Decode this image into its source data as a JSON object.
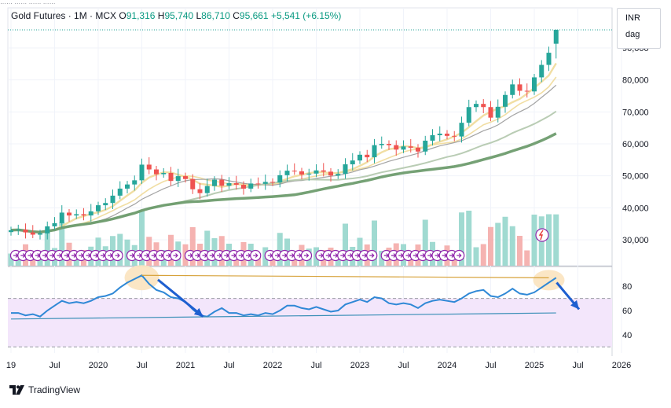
{
  "header": {
    "symbol": "Gold Futures · 1M · MCX",
    "o_label": "O",
    "o_value": "91,316",
    "h_label": "H",
    "h_value": "95,740",
    "l_label": "L",
    "l_value": "86,710",
    "c_label": "C",
    "c_value": "95,661",
    "change": "+5,541 (+6.15%)",
    "cut_text": "…… …… …… ……"
  },
  "scale_box": {
    "currency": "INR",
    "unit": "dag"
  },
  "branding": {
    "name": "TradingView"
  },
  "colors": {
    "up": "#26a69a",
    "down": "#ef5350",
    "rsi_line": "#2f88d6",
    "rsi_band": "#f3e6fb",
    "trend_orange": "#d7a23a",
    "ma_light": "#f0dc9e",
    "ma_mid": "#b5c9b0",
    "ma_dark": "#6e9c6e",
    "ma_gray": "#9e9e9e"
  },
  "chart_data": [
    {
      "type": "candlestick",
      "timeframe": "1M",
      "ylim": [
        21000,
        97000
      ],
      "price_ticks": [
        "30,000",
        "40,000",
        "50,000",
        "60,000",
        "70,000",
        "80,000",
        "90,000"
      ],
      "x_ticks": [
        "19",
        "Jul",
        "2020",
        "Jul",
        "2021",
        "Jul",
        "2022",
        "Jul",
        "2023",
        "Jul",
        "2024",
        "Jul",
        "2025",
        "Jul",
        "2026"
      ],
      "candles": [
        {
          "t": "2019-01",
          "o": 32400,
          "c": 33000
        },
        {
          "t": "2019-02",
          "o": 33000,
          "c": 33200
        },
        {
          "t": "2019-03",
          "o": 33200,
          "c": 32300
        },
        {
          "t": "2019-04",
          "o": 32300,
          "c": 31600
        },
        {
          "t": "2019-05",
          "o": 31600,
          "c": 32000
        },
        {
          "t": "2019-06",
          "o": 32000,
          "c": 34200
        },
        {
          "t": "2019-07",
          "o": 34200,
          "c": 35200
        },
        {
          "t": "2019-08",
          "o": 35200,
          "c": 38500
        },
        {
          "t": "2019-09",
          "o": 38500,
          "c": 37600
        },
        {
          "t": "2019-10",
          "o": 37600,
          "c": 38000
        },
        {
          "t": "2019-11",
          "o": 38000,
          "c": 37600
        },
        {
          "t": "2019-12",
          "o": 37600,
          "c": 38900
        },
        {
          "t": "2020-01",
          "o": 38900,
          "c": 40800
        },
        {
          "t": "2020-02",
          "o": 40800,
          "c": 41500
        },
        {
          "t": "2020-03",
          "o": 41500,
          "c": 43800
        },
        {
          "t": "2020-04",
          "o": 43800,
          "c": 46000
        },
        {
          "t": "2020-05",
          "o": 46000,
          "c": 47300
        },
        {
          "t": "2020-06",
          "o": 47300,
          "c": 48600
        },
        {
          "t": "2020-07",
          "o": 48600,
          "c": 53500
        },
        {
          "t": "2020-08",
          "o": 53500,
          "c": 52000
        },
        {
          "t": "2020-09",
          "o": 52000,
          "c": 50500
        },
        {
          "t": "2020-10",
          "o": 50500,
          "c": 50900
        },
        {
          "t": "2020-11",
          "o": 50900,
          "c": 48400
        },
        {
          "t": "2020-12",
          "o": 48400,
          "c": 49900
        },
        {
          "t": "2021-01",
          "o": 49900,
          "c": 49000
        },
        {
          "t": "2021-02",
          "o": 49000,
          "c": 45800
        },
        {
          "t": "2021-03",
          "o": 45800,
          "c": 44600
        },
        {
          "t": "2021-04",
          "o": 44600,
          "c": 46800
        },
        {
          "t": "2021-05",
          "o": 46800,
          "c": 48800
        },
        {
          "t": "2021-06",
          "o": 48800,
          "c": 46900
        },
        {
          "t": "2021-07",
          "o": 46900,
          "c": 47700
        },
        {
          "t": "2021-08",
          "o": 47700,
          "c": 47200
        },
        {
          "t": "2021-09",
          "o": 47200,
          "c": 46000
        },
        {
          "t": "2021-10",
          "o": 46000,
          "c": 47600
        },
        {
          "t": "2021-11",
          "o": 47600,
          "c": 47500
        },
        {
          "t": "2021-12",
          "o": 47500,
          "c": 48100
        },
        {
          "t": "2022-01",
          "o": 48100,
          "c": 47900
        },
        {
          "t": "2022-02",
          "o": 47900,
          "c": 50200
        },
        {
          "t": "2022-03",
          "o": 50200,
          "c": 51600
        },
        {
          "t": "2022-04",
          "o": 51600,
          "c": 51400
        },
        {
          "t": "2022-05",
          "o": 51400,
          "c": 50400
        },
        {
          "t": "2022-06",
          "o": 50400,
          "c": 50700
        },
        {
          "t": "2022-07",
          "o": 50700,
          "c": 51700
        },
        {
          "t": "2022-08",
          "o": 51700,
          "c": 51300
        },
        {
          "t": "2022-09",
          "o": 51300,
          "c": 50100
        },
        {
          "t": "2022-10",
          "o": 50100,
          "c": 50600
        },
        {
          "t": "2022-11",
          "o": 50600,
          "c": 53600
        },
        {
          "t": "2022-12",
          "o": 53600,
          "c": 54800
        },
        {
          "t": "2023-01",
          "o": 54800,
          "c": 56600
        },
        {
          "t": "2023-02",
          "o": 56600,
          "c": 55800
        },
        {
          "t": "2023-03",
          "o": 55800,
          "c": 59600
        },
        {
          "t": "2023-04",
          "o": 59600,
          "c": 60000
        },
        {
          "t": "2023-05",
          "o": 60000,
          "c": 59600
        },
        {
          "t": "2023-06",
          "o": 59600,
          "c": 58200
        },
        {
          "t": "2023-07",
          "o": 58200,
          "c": 59200
        },
        {
          "t": "2023-08",
          "o": 59200,
          "c": 58800
        },
        {
          "t": "2023-09",
          "o": 58800,
          "c": 57600
        },
        {
          "t": "2023-10",
          "o": 57600,
          "c": 61000
        },
        {
          "t": "2023-11",
          "o": 61000,
          "c": 62700
        },
        {
          "t": "2023-12",
          "o": 62700,
          "c": 63200
        },
        {
          "t": "2024-01",
          "o": 63200,
          "c": 62500
        },
        {
          "t": "2024-02",
          "o": 62500,
          "c": 62300
        },
        {
          "t": "2024-03",
          "o": 62300,
          "c": 66600
        },
        {
          "t": "2024-04",
          "o": 66600,
          "c": 71500
        },
        {
          "t": "2024-05",
          "o": 71500,
          "c": 72500
        },
        {
          "t": "2024-06",
          "o": 72500,
          "c": 71500
        },
        {
          "t": "2024-07",
          "o": 71500,
          "c": 68200
        },
        {
          "t": "2024-08",
          "o": 68200,
          "c": 71600
        },
        {
          "t": "2024-09",
          "o": 71600,
          "c": 75300
        },
        {
          "t": "2024-10",
          "o": 75300,
          "c": 78600
        },
        {
          "t": "2024-11",
          "o": 78600,
          "c": 76600
        },
        {
          "t": "2024-12",
          "o": 76600,
          "c": 76400
        },
        {
          "t": "2025-01",
          "o": 76400,
          "c": 80800
        },
        {
          "t": "2025-02",
          "o": 80800,
          "c": 84700
        },
        {
          "t": "2025-03",
          "o": 84700,
          "c": 88500
        },
        {
          "t": "2025-04",
          "o": 91316,
          "c": 95661,
          "h": 95740,
          "l": 86710
        }
      ],
      "volume_colors_follow_candles": true
    },
    {
      "type": "line",
      "title": "RSI",
      "ylim": [
        25,
        95
      ],
      "y_ticks": [
        "40",
        "60",
        "80"
      ],
      "bands": [
        30,
        70
      ],
      "values": [
        58,
        58,
        56,
        57,
        55,
        60,
        64,
        68,
        66,
        67,
        66,
        68,
        71,
        72,
        74,
        79,
        83,
        86,
        89,
        82,
        77,
        75,
        71,
        70,
        67,
        61,
        56,
        55,
        59,
        62,
        58,
        58,
        56,
        57,
        56,
        58,
        57,
        60,
        64,
        64,
        62,
        61,
        63,
        61,
        59,
        60,
        65,
        67,
        69,
        67,
        71,
        70,
        66,
        65,
        66,
        65,
        62,
        66,
        68,
        69,
        68,
        67,
        70,
        74,
        76,
        77,
        72,
        71,
        74,
        78,
        74,
        73,
        75,
        79,
        83,
        87
      ],
      "trendlines": [
        {
          "from": [
            "2020-07",
            89
          ],
          "to": [
            "2025-03",
            87
          ],
          "color": "orange"
        },
        {
          "from": [
            "2019-01",
            53
          ],
          "to": [
            "2025-04",
            58
          ],
          "color": "teal"
        }
      ]
    }
  ]
}
